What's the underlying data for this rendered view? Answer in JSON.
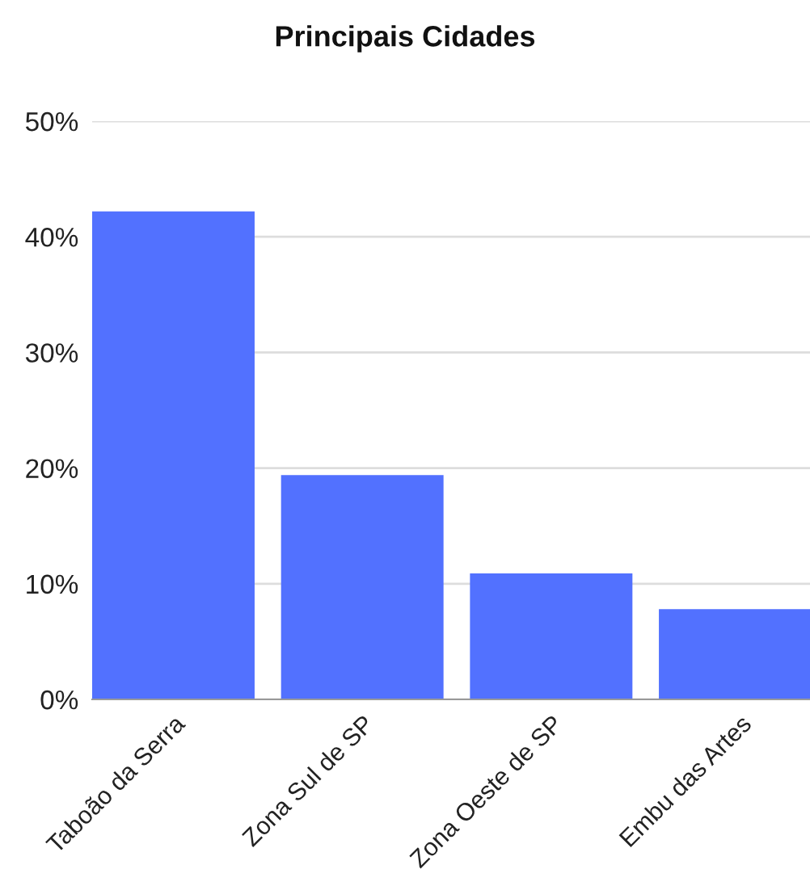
{
  "chart_data": {
    "type": "bar",
    "title": "Principais Cidades",
    "categories": [
      "Taboão da Serra",
      "Zona Sul de SP",
      "Zona Oeste de SP",
      "Embu das Artes"
    ],
    "values": [
      42.2,
      19.4,
      10.9,
      7.8
    ],
    "color": "#5271ff",
    "ylim": [
      0,
      50
    ],
    "yticks": [
      {
        "value": 0,
        "label": "0%"
      },
      {
        "value": 10,
        "label": "10%"
      },
      {
        "value": 20,
        "label": "20%"
      },
      {
        "value": 30,
        "label": "30%"
      },
      {
        "value": 40,
        "label": "40%"
      },
      {
        "value": 50,
        "label": "50%"
      }
    ],
    "grid": "y"
  }
}
